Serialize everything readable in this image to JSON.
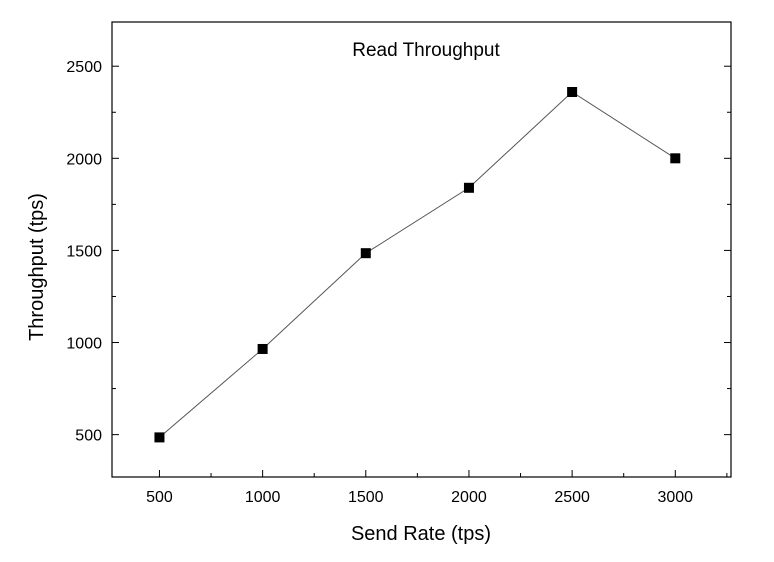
{
  "chart_data": {
    "type": "line",
    "title": "Read Throughput",
    "xlabel": "Send Rate (tps)",
    "ylabel": "Throughput (tps)",
    "x": [
      500,
      1000,
      1500,
      2000,
      2500,
      3000
    ],
    "series": [
      {
        "values": [
          485,
          965,
          1485,
          1840,
          2360,
          2000
        ]
      }
    ],
    "xlim": [
      270,
      3270
    ],
    "ylim": [
      270,
      2740
    ],
    "xticks": [
      "500",
      "1000",
      "1500",
      "2000",
      "2500",
      "3000"
    ],
    "yticks": [
      "500",
      "1000",
      "1500",
      "2000",
      "2500"
    ],
    "grid": false,
    "marker": "square",
    "colors": {
      "line": "#555555",
      "marker": "#000000",
      "axis": "#000000"
    }
  }
}
